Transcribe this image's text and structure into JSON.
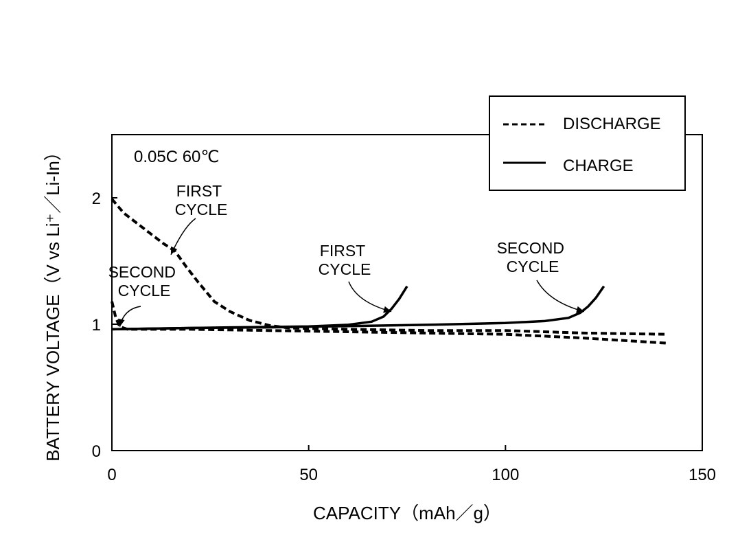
{
  "chart_data": {
    "type": "line",
    "title": "",
    "condition": "0.05C   60℃",
    "xlabel": "CAPACITY（mAh／g）",
    "ylabel": "BATTERY VOLTAGE（V vs Li⁺／Li-In）",
    "xlim": [
      0,
      150
    ],
    "ylim": [
      0,
      2.5
    ],
    "x_ticks": [
      0,
      50,
      100,
      150
    ],
    "y_ticks": [
      0,
      1,
      2
    ],
    "grid": false,
    "legend": {
      "placement": "top-right",
      "entries": [
        {
          "label": "DISCHARGE",
          "style": "dashed"
        },
        {
          "label": "CHARGE",
          "style": "solid"
        }
      ]
    },
    "series": [
      {
        "style": "dashed",
        "note": "first discharge",
        "points": [
          [
            0,
            1.99
          ],
          [
            3,
            1.88
          ],
          [
            8,
            1.76
          ],
          [
            13,
            1.64
          ],
          [
            16,
            1.58
          ],
          [
            19,
            1.45
          ],
          [
            22,
            1.33
          ],
          [
            26,
            1.18
          ],
          [
            30,
            1.1
          ],
          [
            35,
            1.03
          ],
          [
            40,
            0.99
          ],
          [
            45,
            0.97
          ],
          [
            60,
            0.96
          ],
          [
            80,
            0.95
          ],
          [
            100,
            0.95
          ],
          [
            120,
            0.93
          ],
          [
            141,
            0.92
          ]
        ]
      },
      {
        "style": "dashed",
        "note": "second discharge",
        "points": [
          [
            0,
            1.18
          ],
          [
            1,
            1.05
          ],
          [
            2,
            0.98
          ],
          [
            4,
            0.96
          ],
          [
            20,
            0.96
          ],
          [
            40,
            0.95
          ],
          [
            60,
            0.94
          ],
          [
            80,
            0.93
          ],
          [
            100,
            0.92
          ],
          [
            120,
            0.89
          ],
          [
            141,
            0.85
          ]
        ]
      },
      {
        "style": "solid",
        "note": "first charge",
        "points": [
          [
            0,
            0.96
          ],
          [
            10,
            0.965
          ],
          [
            20,
            0.97
          ],
          [
            30,
            0.975
          ],
          [
            40,
            0.978
          ],
          [
            50,
            0.982
          ],
          [
            60,
            0.995
          ],
          [
            66,
            1.02
          ],
          [
            69,
            1.06
          ],
          [
            71,
            1.12
          ],
          [
            73,
            1.2
          ],
          [
            75,
            1.3
          ]
        ]
      },
      {
        "style": "solid",
        "note": "second charge",
        "points": [
          [
            0,
            0.96
          ],
          [
            20,
            0.97
          ],
          [
            40,
            0.975
          ],
          [
            60,
            0.985
          ],
          [
            80,
            0.995
          ],
          [
            100,
            1.01
          ],
          [
            110,
            1.025
          ],
          [
            116,
            1.05
          ],
          [
            119,
            1.09
          ],
          [
            121,
            1.14
          ],
          [
            123,
            1.21
          ],
          [
            125,
            1.3
          ]
        ]
      }
    ],
    "annotations": [
      {
        "lines": [
          "FIRST",
          "CYCLE"
        ],
        "target": "first discharge",
        "at": [
          15,
          1.55
        ]
      },
      {
        "lines": [
          "SECOND",
          "CYCLE"
        ],
        "target": "second discharge",
        "at": [
          2,
          0.98
        ]
      },
      {
        "lines": [
          "FIRST",
          "CYCLE"
        ],
        "target": "first charge",
        "at": [
          71,
          1.1
        ]
      },
      {
        "lines": [
          "SECOND",
          "CYCLE"
        ],
        "target": "second charge",
        "at": [
          120,
          1.1
        ]
      }
    ]
  }
}
